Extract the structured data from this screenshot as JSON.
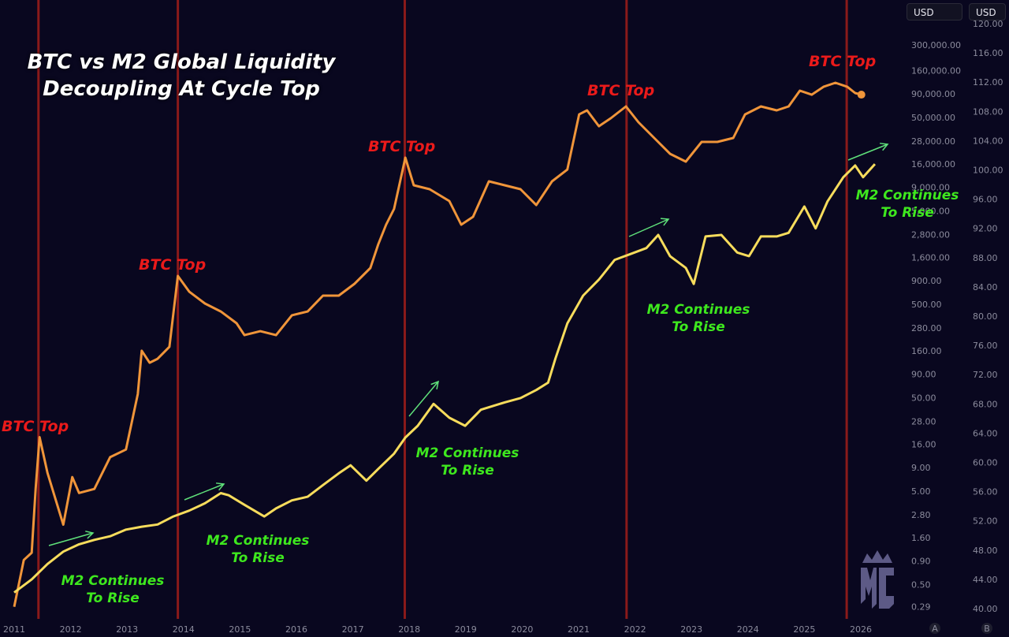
{
  "chart_data": {
    "type": "line",
    "title": "BTC vs M2 Global Liquidity Decoupling At Cycle Top",
    "title_lines": [
      "BTC vs M2 Global Liquidity",
      "Decoupling At Cycle Top"
    ],
    "xlabel": "",
    "x_ticks": [
      "2011",
      "2012",
      "2013",
      "2014",
      "2015",
      "2016",
      "2017",
      "2018",
      "2019",
      "2020",
      "2021",
      "2022",
      "2023",
      "2024",
      "2025",
      "2026"
    ],
    "xlim": [
      2010.75,
      2026.75
    ],
    "y_left": {
      "scale": "log",
      "currency": "USD",
      "ticks": [
        "300,000.00",
        "160,000.00",
        "90,000.00",
        "50,000.00",
        "28,000.00",
        "16,000.00",
        "9,000.00",
        "5,000.00",
        "2,800.00",
        "1,600.00",
        "900.00",
        "500.00",
        "280.00",
        "160.00",
        "90.00",
        "50.00",
        "28.00",
        "16.00",
        "9.00",
        "5.00",
        "2.80",
        "1.60",
        "0.90",
        "0.50",
        "0.29"
      ],
      "scale_label": "A"
    },
    "y_right": {
      "scale": "linear",
      "currency": "USD",
      "ylim": [
        40,
        120
      ],
      "ticks": [
        "120.00",
        "116.00",
        "112.00",
        "108.00",
        "104.00",
        "100.00",
        "96.00",
        "92.00",
        "88.00",
        "84.00",
        "80.00",
        "76.00",
        "72.00",
        "68.00",
        "64.00",
        "60.00",
        "56.00",
        "52.00",
        "48.00",
        "44.00",
        "40.00"
      ],
      "scale_label": "B"
    },
    "grid": false,
    "series": [
      {
        "axis": "left",
        "color": "#f0953a",
        "points": [
          [
            2011.0,
            0.29
          ],
          [
            2011.17,
            0.92
          ],
          [
            2011.31,
            1.1
          ],
          [
            2011.38,
            5.3
          ],
          [
            2011.45,
            19
          ],
          [
            2011.59,
            7.9
          ],
          [
            2011.87,
            2.2
          ],
          [
            2012.03,
            7.1
          ],
          [
            2012.15,
            4.8
          ],
          [
            2012.42,
            5.3
          ],
          [
            2012.7,
            11.6
          ],
          [
            2012.98,
            14
          ],
          [
            2013.19,
            55
          ],
          [
            2013.26,
            160
          ],
          [
            2013.4,
            119
          ],
          [
            2013.54,
            131
          ],
          [
            2013.75,
            176
          ],
          [
            2013.9,
            1010
          ],
          [
            2014.1,
            686
          ],
          [
            2014.38,
            512
          ],
          [
            2014.66,
            421
          ],
          [
            2014.94,
            315
          ],
          [
            2015.08,
            235
          ],
          [
            2015.36,
            259
          ],
          [
            2015.64,
            235
          ],
          [
            2015.92,
            383
          ],
          [
            2016.2,
            421
          ],
          [
            2016.47,
            622
          ],
          [
            2016.75,
            622
          ],
          [
            2017.03,
            832
          ],
          [
            2017.31,
            1227
          ],
          [
            2017.45,
            2200
          ],
          [
            2017.59,
            3570
          ],
          [
            2017.73,
            5270
          ],
          [
            2017.93,
            18650
          ],
          [
            2018.08,
            9440
          ],
          [
            2018.36,
            8570
          ],
          [
            2018.71,
            6400
          ],
          [
            2018.92,
            3570
          ],
          [
            2019.13,
            4340
          ],
          [
            2019.41,
            10400
          ],
          [
            2019.69,
            9440
          ],
          [
            2019.97,
            8570
          ],
          [
            2020.25,
            5800
          ],
          [
            2020.53,
            10400
          ],
          [
            2020.8,
            13900
          ],
          [
            2021.01,
            54200
          ],
          [
            2021.15,
            59800
          ],
          [
            2021.36,
            40500
          ],
          [
            2021.57,
            49200
          ],
          [
            2021.84,
            65900
          ],
          [
            2022.06,
            44700
          ],
          [
            2022.34,
            30300
          ],
          [
            2022.62,
            20500
          ],
          [
            2022.9,
            16900
          ],
          [
            2023.18,
            27500
          ],
          [
            2023.46,
            27500
          ],
          [
            2023.74,
            30300
          ],
          [
            2023.95,
            54200
          ],
          [
            2024.23,
            65900
          ],
          [
            2024.51,
            59800
          ],
          [
            2024.72,
            65900
          ],
          [
            2024.92,
            97200
          ],
          [
            2025.13,
            88100
          ],
          [
            2025.34,
            107000
          ],
          [
            2025.55,
            118000
          ],
          [
            2025.76,
            107000
          ],
          [
            2025.9,
            91700
          ],
          [
            2026.01,
            88100
          ]
        ]
      },
      {
        "axis": "right",
        "color": "#f7dc5c",
        "points": [
          [
            2011.0,
            42.2
          ],
          [
            2011.31,
            44.0
          ],
          [
            2011.59,
            46.1
          ],
          [
            2011.87,
            47.8
          ],
          [
            2012.15,
            48.8
          ],
          [
            2012.42,
            49.4
          ],
          [
            2012.7,
            49.9
          ],
          [
            2012.98,
            50.8
          ],
          [
            2013.26,
            51.2
          ],
          [
            2013.54,
            51.5
          ],
          [
            2013.82,
            52.6
          ],
          [
            2014.1,
            53.4
          ],
          [
            2014.38,
            54.4
          ],
          [
            2014.66,
            55.8
          ],
          [
            2014.8,
            55.5
          ],
          [
            2015.08,
            54.2
          ],
          [
            2015.43,
            52.6
          ],
          [
            2015.64,
            53.7
          ],
          [
            2015.92,
            54.8
          ],
          [
            2016.2,
            55.3
          ],
          [
            2016.47,
            56.9
          ],
          [
            2016.75,
            58.5
          ],
          [
            2016.96,
            59.6
          ],
          [
            2017.24,
            57.5
          ],
          [
            2017.45,
            59.1
          ],
          [
            2017.73,
            61.2
          ],
          [
            2017.93,
            63.4
          ],
          [
            2018.15,
            65.0
          ],
          [
            2018.43,
            68.0
          ],
          [
            2018.71,
            66.1
          ],
          [
            2018.99,
            65.0
          ],
          [
            2019.27,
            67.2
          ],
          [
            2019.69,
            68.2
          ],
          [
            2019.97,
            68.8
          ],
          [
            2020.25,
            69.9
          ],
          [
            2020.46,
            70.9
          ],
          [
            2020.59,
            74.2
          ],
          [
            2020.8,
            79.0
          ],
          [
            2021.08,
            82.8
          ],
          [
            2021.36,
            85.0
          ],
          [
            2021.64,
            87.7
          ],
          [
            2021.92,
            88.5
          ],
          [
            2022.2,
            89.3
          ],
          [
            2022.41,
            91.1
          ],
          [
            2022.62,
            88.2
          ],
          [
            2022.9,
            86.6
          ],
          [
            2023.04,
            84.4
          ],
          [
            2023.25,
            90.9
          ],
          [
            2023.53,
            91.1
          ],
          [
            2023.81,
            88.7
          ],
          [
            2024.02,
            88.2
          ],
          [
            2024.23,
            90.9
          ],
          [
            2024.51,
            90.9
          ],
          [
            2024.72,
            91.4
          ],
          [
            2025.0,
            95.0
          ],
          [
            2025.2,
            92.0
          ],
          [
            2025.41,
            95.7
          ],
          [
            2025.69,
            99.0
          ],
          [
            2025.9,
            100.6
          ],
          [
            2026.04,
            99.0
          ],
          [
            2026.25,
            100.8
          ]
        ]
      }
    ],
    "cycle_tops": [
      2011.43,
      2013.9,
      2017.92,
      2021.85,
      2025.75
    ],
    "cycle_line_color": "#8a1a1a",
    "annotations": [
      {
        "text": "BTC Top",
        "type": "btc-top"
      },
      {
        "text": "BTC Top",
        "type": "btc-top"
      },
      {
        "text": "BTC Top",
        "type": "btc-top"
      },
      {
        "text": "BTC Top",
        "type": "btc-top"
      },
      {
        "text": "BTC Top",
        "type": "btc-top"
      },
      {
        "text": "M2 Continues To Rise",
        "type": "m2-rise"
      },
      {
        "text": "M2 Continues To Rise",
        "type": "m2-rise"
      },
      {
        "text": "M2 Continues To Rise",
        "type": "m2-rise"
      },
      {
        "text": "M2 Continues To Rise",
        "type": "m2-rise"
      },
      {
        "text": "M2 Continues To Rise",
        "type": "m2-rise"
      }
    ]
  },
  "currency_buttons": [
    "USD",
    "USD"
  ],
  "logo_text": "MC",
  "colors": {
    "background": "#09071f",
    "btc": "#f0953a",
    "m2": "#f7dc5c",
    "btc_top": "#ea1a1a",
    "m2_label": "#3ee81e",
    "arrow": "#5fe07a"
  }
}
